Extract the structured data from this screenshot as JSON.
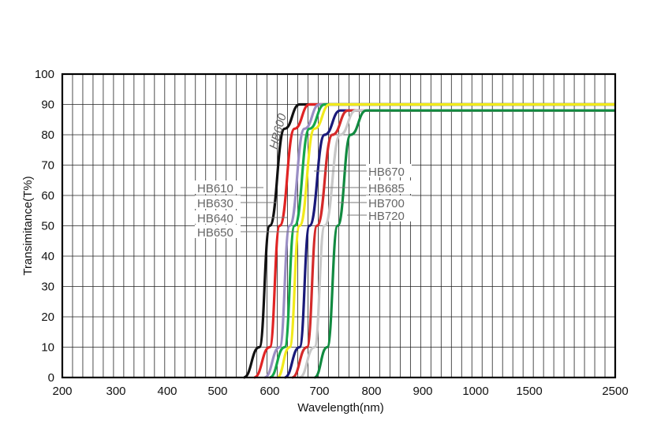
{
  "chart_data": {
    "type": "line",
    "title": "",
    "xlabel": "Wavelength(nm)",
    "ylabel": "Transimitance(T%)",
    "x_tick_labels": [
      "200",
      "300",
      "400",
      "500",
      "600",
      "700",
      "800",
      "900",
      "1000",
      "1500",
      "2500"
    ],
    "x_scale": "non-linear (ticks evenly spaced)",
    "y_ticks": [
      0,
      10,
      20,
      30,
      40,
      50,
      60,
      70,
      80,
      90,
      100
    ],
    "ylim": [
      0,
      100
    ],
    "grid": true,
    "series": [
      {
        "name": "HB600",
        "color": "#111111",
        "x": [
          550,
          580,
          600,
          630,
          660,
          700,
          2500
        ],
        "y": [
          0,
          10,
          50,
          82,
          90,
          90,
          90
        ]
      },
      {
        "name": "HB610",
        "color": "#e02424",
        "x": [
          570,
          600,
          620,
          650,
          680,
          720,
          2500
        ],
        "y": [
          0,
          10,
          50,
          82,
          90,
          90,
          90
        ]
      },
      {
        "name": "HB630",
        "color": "#9a8ec4",
        "x": [
          590,
          620,
          640,
          670,
          700,
          740,
          2500
        ],
        "y": [
          0,
          10,
          50,
          82,
          90,
          90,
          90
        ]
      },
      {
        "name": "HB640",
        "color": "#14a84a",
        "x": [
          600,
          630,
          650,
          680,
          710,
          750,
          2500
        ],
        "y": [
          0,
          10,
          50,
          82,
          90,
          90,
          90
        ]
      },
      {
        "name": "HB650",
        "color": "#f2ea1a",
        "x": [
          615,
          640,
          660,
          690,
          720,
          760,
          2500
        ],
        "y": [
          0,
          10,
          50,
          82,
          90,
          90,
          90
        ]
      },
      {
        "name": "HB670",
        "color": "#1a1a7a",
        "x": [
          630,
          660,
          680,
          710,
          740,
          780,
          2500
        ],
        "y": [
          0,
          10,
          50,
          80,
          88,
          88,
          88
        ]
      },
      {
        "name": "HB685",
        "color": "#d42a2a",
        "x": [
          645,
          675,
          695,
          725,
          755,
          790,
          2500
        ],
        "y": [
          0,
          10,
          50,
          80,
          88,
          88,
          88
        ]
      },
      {
        "name": "HB700",
        "color": "#c8c8c8",
        "x": [
          660,
          690,
          710,
          740,
          770,
          800,
          2500
        ],
        "y": [
          0,
          10,
          50,
          80,
          88,
          88,
          88
        ]
      },
      {
        "name": "HB720",
        "color": "#118a40",
        "x": [
          690,
          715,
          735,
          760,
          790,
          820,
          2500
        ],
        "y": [
          0,
          10,
          50,
          80,
          88,
          88,
          88
        ]
      }
    ],
    "annotations": {
      "left_labels": [
        "HB610",
        "HB630",
        "HB640",
        "HB650"
      ],
      "right_labels": [
        "HB670",
        "HB685",
        "HB700",
        "HB720"
      ],
      "rotated_label": "HB600"
    }
  }
}
